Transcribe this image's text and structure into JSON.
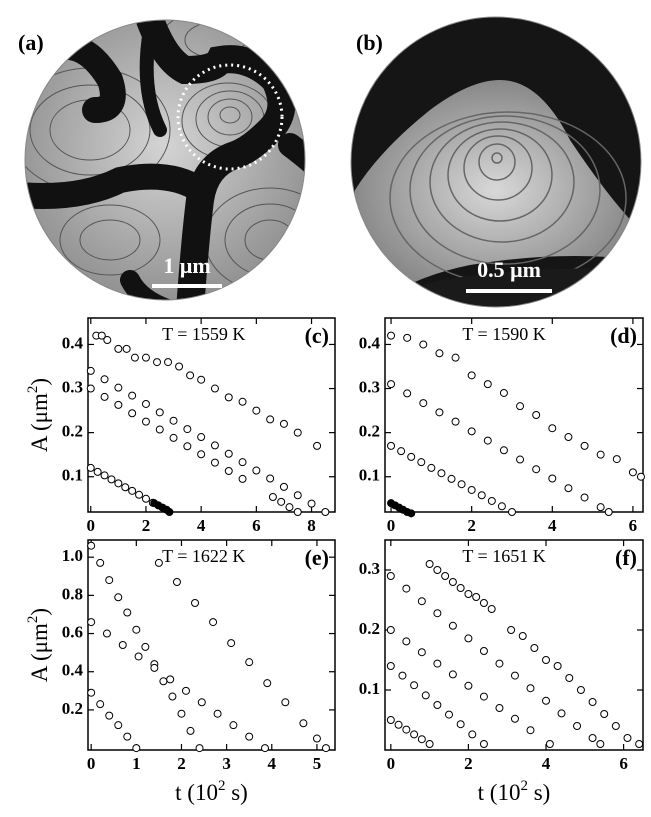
{
  "panels": [
    {
      "label": "(a)",
      "scale_bar": "1 μm"
    },
    {
      "label": "(b)",
      "scale_bar": "0.5 μm"
    }
  ],
  "chart_data": [
    {
      "type": "scatter",
      "panel_label": "(c)",
      "annotation": "T = 1559 K",
      "y_label": {
        "text": "A (μm",
        "sup": "2",
        "end": ")"
      },
      "xlim": [
        -0.1,
        8.85
      ],
      "ylim": [
        0.02,
        0.46
      ],
      "xticks": [
        0,
        2,
        4,
        6,
        8
      ],
      "yticks": [
        0.1,
        0.2,
        0.3,
        0.4
      ],
      "series": [
        {
          "marker_fill": "#ffffff",
          "x": [
            0.2,
            0.4,
            0.6,
            1.0,
            1.3,
            1.6,
            2.0,
            2.4,
            2.8,
            3.2,
            3.6,
            4.0,
            4.5,
            5.0,
            5.5,
            6.0,
            6.5,
            7.0,
            7.5,
            8.2
          ],
          "y": [
            0.42,
            0.42,
            0.41,
            0.39,
            0.39,
            0.37,
            0.37,
            0.36,
            0.36,
            0.35,
            0.33,
            0.32,
            0.3,
            0.28,
            0.27,
            0.25,
            0.23,
            0.22,
            0.2,
            0.17
          ]
        },
        {
          "marker_fill": "#ffffff",
          "x": [
            0,
            0.5,
            1,
            1.5,
            2,
            2.5,
            3,
            3.5,
            4,
            4.5,
            5,
            5.5,
            6,
            6.5,
            7,
            7.5,
            8,
            8.5
          ],
          "y": [
            0.34,
            0.321,
            0.302,
            0.284,
            0.265,
            0.246,
            0.227,
            0.208,
            0.19,
            0.171,
            0.152,
            0.133,
            0.114,
            0.096,
            0.077,
            0.058,
            0.039,
            0.02
          ]
        },
        {
          "marker_fill": "#ffffff",
          "x": [
            0,
            0.5,
            1,
            1.5,
            2,
            2.5,
            3,
            3.5,
            4,
            4.5,
            5,
            5.5,
            6.6,
            6.9,
            7.2,
            7.5
          ],
          "y": [
            0.3,
            0.281,
            0.263,
            0.244,
            0.225,
            0.207,
            0.188,
            0.169,
            0.151,
            0.132,
            0.113,
            0.095,
            0.054,
            0.043,
            0.031,
            0.02
          ]
        },
        {
          "marker_fill": "#ffffff",
          "x": [
            0,
            0.25,
            0.5,
            0.75,
            1,
            1.25,
            1.5,
            1.75,
            2,
            2.25
          ],
          "y": [
            0.12,
            0.111,
            0.103,
            0.094,
            0.085,
            0.076,
            0.068,
            0.059,
            0.05,
            0.041
          ]
        },
        {
          "marker_fill": "#000000",
          "x": [
            2.3,
            2.45,
            2.6,
            2.75,
            2.85
          ],
          "y": [
            0.04,
            0.035,
            0.03,
            0.025,
            0.02
          ]
        }
      ]
    },
    {
      "type": "scatter",
      "panel_label": "(d)",
      "annotation": "T = 1590 K",
      "xlim": [
        -0.15,
        6.25
      ],
      "ylim": [
        0.02,
        0.46
      ],
      "xticks": [
        0,
        2,
        4,
        6
      ],
      "yticks": [
        0.1,
        0.2,
        0.3,
        0.4
      ],
      "series": [
        {
          "marker_fill": "#ffffff",
          "x": [
            0,
            0.4,
            0.8,
            1.2,
            1.6,
            2,
            2.4,
            2.8,
            3.2,
            3.6,
            4,
            4.4,
            4.8,
            5.2,
            5.6,
            6.0,
            6.2
          ],
          "y": [
            0.42,
            0.415,
            0.4,
            0.38,
            0.37,
            0.33,
            0.31,
            0.29,
            0.26,
            0.24,
            0.21,
            0.19,
            0.17,
            0.15,
            0.14,
            0.11,
            0.1
          ]
        },
        {
          "marker_fill": "#ffffff",
          "x": [
            0,
            0.4,
            0.8,
            1.2,
            1.6,
            2,
            2.4,
            2.8,
            3.2,
            3.6,
            4,
            4.4,
            4.8,
            5.2,
            5.4
          ],
          "y": [
            0.31,
            0.289,
            0.267,
            0.246,
            0.225,
            0.203,
            0.182,
            0.16,
            0.139,
            0.117,
            0.096,
            0.074,
            0.053,
            0.031,
            0.02
          ]
        },
        {
          "marker_fill": "#ffffff",
          "x": [
            0,
            0.25,
            0.5,
            0.75,
            1,
            1.25,
            1.5,
            1.75,
            2,
            2.25,
            2.5,
            2.75,
            3.0
          ],
          "y": [
            0.17,
            0.158,
            0.145,
            0.133,
            0.12,
            0.108,
            0.095,
            0.083,
            0.07,
            0.058,
            0.045,
            0.033,
            0.02
          ]
        },
        {
          "marker_fill": "#000000",
          "x": [
            0,
            0.1,
            0.2,
            0.3,
            0.4,
            0.5
          ],
          "y": [
            0.04,
            0.035,
            0.03,
            0.025,
            0.02,
            0.017
          ]
        }
      ]
    },
    {
      "type": "scatter",
      "panel_label": "(e)",
      "annotation": "T = 1622 K",
      "y_label": {
        "text": "A (μm",
        "sup": "2",
        "end": ")"
      },
      "x_label": {
        "text": "t (10",
        "sup": "2",
        "end": " s)"
      },
      "xlim": [
        -0.07,
        5.4
      ],
      "ylim": [
        -0.01,
        1.09
      ],
      "xticks": [
        0,
        1,
        2,
        3,
        4,
        5
      ],
      "yticks": [
        0.2,
        0.4,
        0.6,
        0.8,
        {
          "value": 1,
          "label": "1.0"
        }
      ],
      "series": [
        {
          "marker_fill": "#ffffff",
          "x": [
            0,
            0.2,
            0.4,
            0.6,
            0.8,
            1.0,
            1.2,
            1.4,
            1.6,
            1.8,
            2.0,
            2.2,
            2.4
          ],
          "y": [
            1.06,
            0.97,
            0.88,
            0.79,
            0.71,
            0.62,
            0.53,
            0.44,
            0.35,
            0.27,
            0.18,
            0.09,
            0.0
          ]
        },
        {
          "marker_fill": "#ffffff",
          "x": [
            0,
            0.35,
            0.7,
            1.05,
            1.4,
            1.75,
            2.1,
            2.45,
            2.8,
            3.15,
            3.5,
            3.85
          ],
          "y": [
            0.66,
            0.6,
            0.54,
            0.48,
            0.42,
            0.36,
            0.3,
            0.24,
            0.18,
            0.12,
            0.06,
            0.0
          ]
        },
        {
          "marker_fill": "#ffffff",
          "x": [
            0,
            0.2,
            0.4,
            0.6,
            0.8,
            1.0
          ],
          "y": [
            0.29,
            0.23,
            0.17,
            0.12,
            0.06,
            0.0
          ]
        },
        {
          "marker_fill": "#ffffff",
          "x": [
            1.5,
            1.9,
            2.3,
            2.7,
            3.1,
            3.5,
            3.9,
            4.3,
            4.7,
            5.0,
            5.2
          ],
          "y": [
            0.97,
            0.87,
            0.76,
            0.66,
            0.55,
            0.45,
            0.34,
            0.24,
            0.13,
            0.05,
            0.0
          ]
        }
      ]
    },
    {
      "type": "scatter",
      "panel_label": "(f)",
      "annotation": "T = 1651 K",
      "x_label": {
        "text": "t (10",
        "sup": "2",
        "end": " s)"
      },
      "xlim": [
        -0.15,
        6.5
      ],
      "ylim": [
        0,
        0.35
      ],
      "xticks": [
        0,
        2,
        4,
        6
      ],
      "yticks": [
        0.1,
        0.2,
        0.3
      ],
      "series": [
        {
          "marker_fill": "#ffffff",
          "x": [
            1.0,
            1.2,
            1.4,
            1.6,
            1.8,
            2.0,
            2.2,
            2.4,
            2.6
          ],
          "y": [
            0.31,
            0.3,
            0.29,
            0.28,
            0.27,
            0.26,
            0.255,
            0.245,
            0.235
          ]
        },
        {
          "marker_fill": "#ffffff",
          "x": [
            3.1,
            3.4,
            3.7,
            4.0,
            4.3,
            4.6,
            4.9,
            5.2,
            5.5,
            5.8,
            6.1,
            6.4
          ],
          "y": [
            0.2,
            0.19,
            0.17,
            0.15,
            0.14,
            0.12,
            0.1,
            0.08,
            0.06,
            0.04,
            0.02,
            0.01
          ]
        },
        {
          "marker_fill": "#ffffff",
          "x": [
            0,
            0.4,
            0.8,
            1.2,
            1.6,
            2.0,
            2.4,
            2.8,
            3.2,
            3.6,
            4.0,
            4.4,
            4.8,
            5.2,
            5.4
          ],
          "y": [
            0.29,
            0.269,
            0.248,
            0.228,
            0.207,
            0.186,
            0.165,
            0.144,
            0.124,
            0.103,
            0.082,
            0.061,
            0.04,
            0.02,
            0.01
          ]
        },
        {
          "marker_fill": "#ffffff",
          "x": [
            0,
            0.4,
            0.8,
            1.2,
            1.6,
            2.0,
            2.4,
            2.8,
            3.2,
            3.6,
            4.1
          ],
          "y": [
            0.2,
            0.181,
            0.163,
            0.144,
            0.126,
            0.107,
            0.089,
            0.07,
            0.052,
            0.033,
            0.01
          ]
        },
        {
          "marker_fill": "#ffffff",
          "x": [
            0,
            0.3,
            0.6,
            0.9,
            1.2,
            1.5,
            1.8,
            2.1,
            2.4
          ],
          "y": [
            0.14,
            0.124,
            0.108,
            0.091,
            0.075,
            0.059,
            0.043,
            0.026,
            0.01
          ]
        },
        {
          "marker_fill": "#ffffff",
          "x": [
            0,
            0.2,
            0.4,
            0.6,
            0.8,
            1.0
          ],
          "y": [
            0.05,
            0.042,
            0.034,
            0.026,
            0.018,
            0.01
          ]
        }
      ]
    }
  ]
}
